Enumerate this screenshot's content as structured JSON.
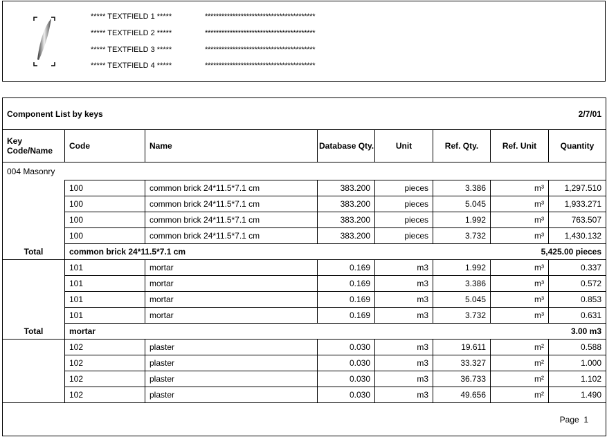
{
  "header": {
    "logo": "quill-pen-logo",
    "textfields": [
      "***** TEXTFIELD 1 *****",
      "***** TEXTFIELD 2 *****",
      "***** TEXTFIELD 3 *****",
      "***** TEXTFIELD 4 *****"
    ],
    "values": [
      "****************************************",
      "****************************************",
      "****************************************",
      "****************************************"
    ]
  },
  "report": {
    "title": "Component List by keys",
    "date": "2/7/01",
    "columns": [
      "Key Code/Name",
      "Code",
      "Name",
      "Database Qty.",
      "Unit",
      "Ref. Qty.",
      "Ref. Unit",
      "Quantity"
    ],
    "group": "004 Masonry",
    "sections": [
      {
        "rows": [
          [
            "100",
            "common brick 24*11.5*7.1 cm",
            "383.200",
            "pieces",
            "3.386",
            "m³",
            "1,297.510"
          ],
          [
            "100",
            "common brick 24*11.5*7.1 cm",
            "383.200",
            "pieces",
            "5.045",
            "m³",
            "1,933.271"
          ],
          [
            "100",
            "common brick 24*11.5*7.1 cm",
            "383.200",
            "pieces",
            "1.992",
            "m³",
            "763.507"
          ],
          [
            "100",
            "common brick 24*11.5*7.1 cm",
            "383.200",
            "pieces",
            "3.732",
            "m³",
            "1,430.132"
          ]
        ],
        "total": {
          "label": "Total",
          "name": "common brick 24*11.5*7.1 cm",
          "value": "5,425.00 pieces"
        }
      },
      {
        "rows": [
          [
            "101",
            "mortar",
            "0.169",
            "m3",
            "1.992",
            "m³",
            "0.337"
          ],
          [
            "101",
            "mortar",
            "0.169",
            "m3",
            "3.386",
            "m³",
            "0.572"
          ],
          [
            "101",
            "mortar",
            "0.169",
            "m3",
            "5.045",
            "m³",
            "0.853"
          ],
          [
            "101",
            "mortar",
            "0.169",
            "m3",
            "3.732",
            "m³",
            "0.631"
          ]
        ],
        "total": {
          "label": "Total",
          "name": "mortar",
          "value": "3.00 m3"
        }
      },
      {
        "rows": [
          [
            "102",
            "plaster",
            "0.030",
            "m3",
            "19.611",
            "m²",
            "0.588"
          ],
          [
            "102",
            "plaster",
            "0.030",
            "m3",
            "33.327",
            "m²",
            "1.000"
          ],
          [
            "102",
            "plaster",
            "0.030",
            "m3",
            "36.733",
            "m²",
            "1.102"
          ],
          [
            "102",
            "plaster",
            "0.030",
            "m3",
            "49.656",
            "m²",
            "1.490"
          ]
        ]
      }
    ],
    "footer": "Page  1"
  }
}
